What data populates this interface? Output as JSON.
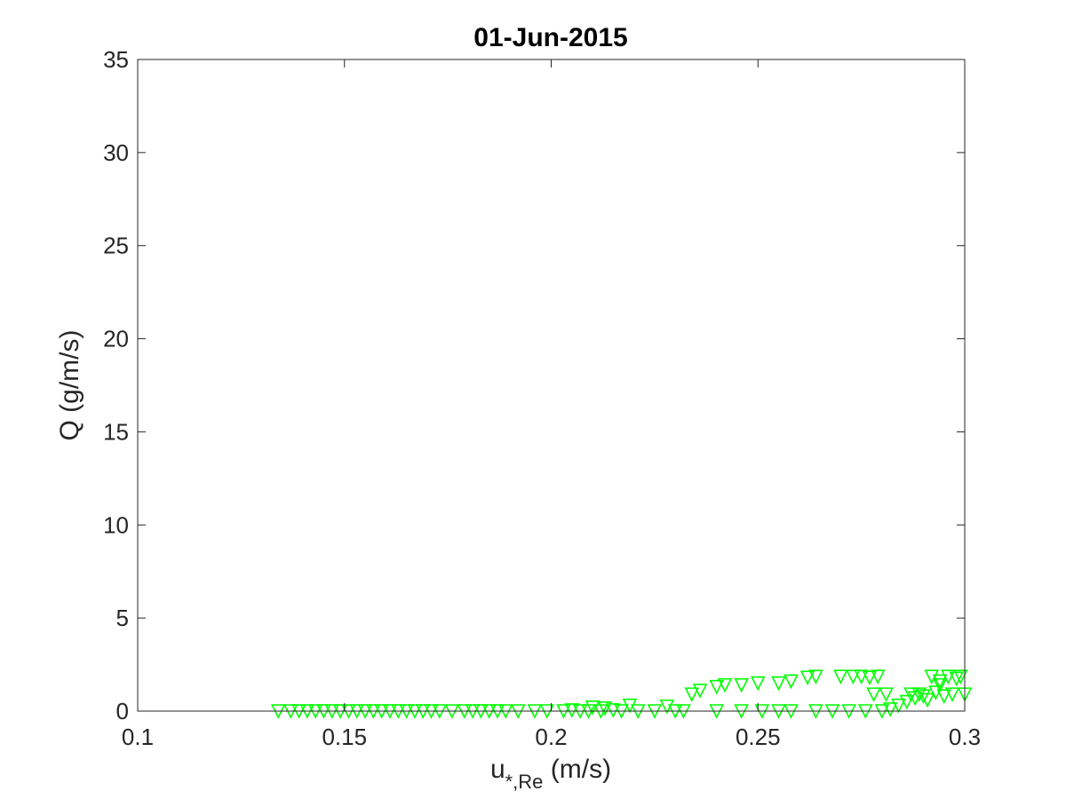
{
  "chart_data": {
    "type": "scatter",
    "title": "01-Jun-2015",
    "xlabel": {
      "base": "u",
      "subscript": "*,Re",
      "units": " (m/s)"
    },
    "ylabel": "Q (g/m/s)",
    "xlim": [
      0.1,
      0.3
    ],
    "ylim": [
      0,
      35
    ],
    "xticks": [
      "0.1",
      "0.15",
      "0.2",
      "0.25",
      "0.3"
    ],
    "xtick_values": [
      0.1,
      0.15,
      0.2,
      0.25,
      0.3
    ],
    "yticks": [
      "0",
      "5",
      "10",
      "15",
      "20",
      "25",
      "30",
      "35"
    ],
    "ytick_values": [
      0,
      5,
      10,
      15,
      20,
      25,
      30,
      35
    ],
    "grid": false,
    "marker": "downward-triangle",
    "marker_color": "#00ff00",
    "axis_color": "#262626",
    "points": [
      [
        0.134,
        0.0
      ],
      [
        0.137,
        0.0
      ],
      [
        0.139,
        0.0
      ],
      [
        0.141,
        0.0
      ],
      [
        0.143,
        0.0
      ],
      [
        0.145,
        0.0
      ],
      [
        0.147,
        0.0
      ],
      [
        0.149,
        0.0
      ],
      [
        0.151,
        0.0
      ],
      [
        0.153,
        0.0
      ],
      [
        0.155,
        0.0
      ],
      [
        0.157,
        0.0
      ],
      [
        0.159,
        0.0
      ],
      [
        0.161,
        0.0
      ],
      [
        0.163,
        0.0
      ],
      [
        0.165,
        0.0
      ],
      [
        0.167,
        0.0
      ],
      [
        0.169,
        0.0
      ],
      [
        0.171,
        0.0
      ],
      [
        0.173,
        0.0
      ],
      [
        0.176,
        0.0
      ],
      [
        0.179,
        0.0
      ],
      [
        0.181,
        0.0
      ],
      [
        0.183,
        0.0
      ],
      [
        0.185,
        0.0
      ],
      [
        0.187,
        0.0
      ],
      [
        0.189,
        0.0
      ],
      [
        0.192,
        0.0
      ],
      [
        0.196,
        0.0
      ],
      [
        0.199,
        0.0
      ],
      [
        0.203,
        0.0
      ],
      [
        0.205,
        0.05
      ],
      [
        0.207,
        0.0
      ],
      [
        0.209,
        0.0
      ],
      [
        0.21,
        0.2
      ],
      [
        0.212,
        0.0
      ],
      [
        0.213,
        0.15
      ],
      [
        0.215,
        0.05
      ],
      [
        0.217,
        0.0
      ],
      [
        0.219,
        0.3
      ],
      [
        0.221,
        0.0
      ],
      [
        0.225,
        0.0
      ],
      [
        0.228,
        0.25
      ],
      [
        0.23,
        0.0
      ],
      [
        0.232,
        0.0
      ],
      [
        0.234,
        0.9
      ],
      [
        0.236,
        1.1
      ],
      [
        0.24,
        1.3
      ],
      [
        0.24,
        0.0
      ],
      [
        0.242,
        1.4
      ],
      [
        0.246,
        1.4
      ],
      [
        0.246,
        0.0
      ],
      [
        0.25,
        1.5
      ],
      [
        0.251,
        0.0
      ],
      [
        0.255,
        1.5
      ],
      [
        0.255,
        0.0
      ],
      [
        0.258,
        1.6
      ],
      [
        0.258,
        0.0
      ],
      [
        0.262,
        1.8
      ],
      [
        0.264,
        1.85
      ],
      [
        0.264,
        0.0
      ],
      [
        0.268,
        0.0
      ],
      [
        0.27,
        1.85
      ],
      [
        0.272,
        0.0
      ],
      [
        0.273,
        1.85
      ],
      [
        0.275,
        1.85
      ],
      [
        0.276,
        0.0
      ],
      [
        0.277,
        1.8
      ],
      [
        0.278,
        0.9
      ],
      [
        0.279,
        1.85
      ],
      [
        0.28,
        0.0
      ],
      [
        0.281,
        0.9
      ],
      [
        0.282,
        0.1
      ],
      [
        0.284,
        0.3
      ],
      [
        0.286,
        0.5
      ],
      [
        0.287,
        0.9
      ],
      [
        0.288,
        0.7
      ],
      [
        0.289,
        0.9
      ],
      [
        0.29,
        0.8
      ],
      [
        0.291,
        0.6
      ],
      [
        0.292,
        1.85
      ],
      [
        0.293,
        1.0
      ],
      [
        0.294,
        1.6
      ],
      [
        0.294,
        1.4
      ],
      [
        0.295,
        0.8
      ],
      [
        0.296,
        1.85
      ],
      [
        0.297,
        0.9
      ],
      [
        0.298,
        1.75
      ],
      [
        0.299,
        1.85
      ],
      [
        0.3,
        0.9
      ]
    ]
  }
}
